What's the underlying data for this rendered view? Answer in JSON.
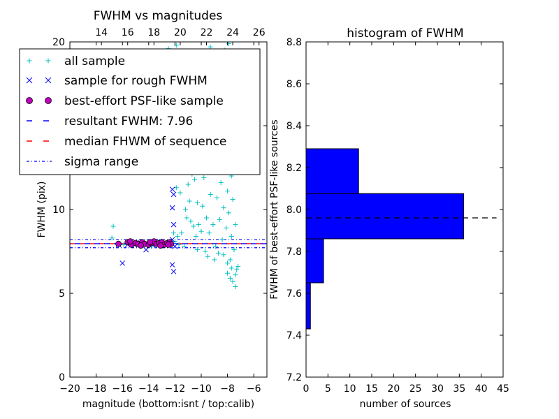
{
  "chart_data": [
    {
      "type": "scatter",
      "title": "FWHM vs magnitudes",
      "xlabel": "magnitude (bottom:isnt / top:calib)",
      "ylabel": "FWHM (pix)",
      "xlim": [
        -20,
        -5
      ],
      "ylim": [
        0,
        20
      ],
      "x_ticks": [
        "−20",
        "−18",
        "−16",
        "−14",
        "−12",
        "−10",
        "−8",
        "−6"
      ],
      "y_ticks": [
        "0",
        "5",
        "10",
        "20"
      ],
      "top_x_ticks": [
        {
          "label": "14",
          "value": -17.6
        },
        {
          "label": "16",
          "value": -15.6
        },
        {
          "label": "18",
          "value": -13.6
        },
        {
          "label": "20",
          "value": -11.6
        },
        {
          "label": "22",
          "value": -9.6
        },
        {
          "label": "24",
          "value": -7.6
        },
        {
          "label": "26",
          "value": -5.6
        }
      ],
      "legend": {
        "position": "top-left",
        "entries": [
          "all sample",
          "sample for rough FWHM",
          "best-effort PSF-like sample",
          "resultant FWHM: 7.96",
          "median FHWM of sequence",
          "sigma range"
        ]
      },
      "colors": {
        "all_sample": "#00bfbf",
        "rough_sample": "#0000ff",
        "psf_fill": "#bf00bf",
        "resultant_line": "#0000ff",
        "median_line": "#ff0000",
        "sigma_line": "#0000ff"
      },
      "series": [
        {
          "name": "all sample",
          "points": [
            [
              -16.7,
              9.0
            ],
            [
              -16.8,
              8.3
            ],
            [
              -16.3,
              7.9
            ],
            [
              -15.9,
              7.9
            ],
            [
              -15.5,
              8.0
            ],
            [
              -15.2,
              7.9
            ],
            [
              -14.9,
              8.0
            ],
            [
              -14.6,
              8.1
            ],
            [
              -14.3,
              7.9
            ],
            [
              -14.1,
              8.0
            ],
            [
              -13.8,
              7.8
            ],
            [
              -13.5,
              8.0
            ],
            [
              -13.2,
              7.9
            ],
            [
              -12.9,
              8.0
            ],
            [
              -12.6,
              7.9
            ],
            [
              -12.3,
              8.0
            ],
            [
              -12.0,
              8.1
            ],
            [
              -11.7,
              7.9
            ],
            [
              -11.5,
              8.6
            ],
            [
              -11.3,
              7.8
            ],
            [
              -11.1,
              9.5
            ],
            [
              -11.0,
              11.5
            ],
            [
              -10.9,
              10.5
            ],
            [
              -10.7,
              12.1
            ],
            [
              -10.6,
              9.0
            ],
            [
              -10.5,
              11.8
            ],
            [
              -10.4,
              8.4
            ],
            [
              -10.3,
              10.4
            ],
            [
              -10.2,
              9.1
            ],
            [
              -10.1,
              12.8
            ],
            [
              -10.0,
              8.7
            ],
            [
              -9.9,
              13.5
            ],
            [
              -9.9,
              10.2
            ],
            [
              -9.8,
              11.9
            ],
            [
              -9.7,
              7.5
            ],
            [
              -9.6,
              14.0
            ],
            [
              -9.6,
              9.5
            ],
            [
              -9.5,
              12.7
            ],
            [
              -9.4,
              15.0
            ],
            [
              -9.4,
              8.6
            ],
            [
              -9.3,
              10.9
            ],
            [
              -9.2,
              13.8
            ],
            [
              -9.1,
              16.5
            ],
            [
              -9.1,
              9.1
            ],
            [
              -9.0,
              12.3
            ],
            [
              -8.9,
              14.6
            ],
            [
              -8.9,
              7.8
            ],
            [
              -8.8,
              17.8
            ],
            [
              -8.8,
              10.7
            ],
            [
              -8.7,
              13.1
            ],
            [
              -8.6,
              15.7
            ],
            [
              -8.6,
              9.4
            ],
            [
              -8.5,
              18.9
            ],
            [
              -8.5,
              11.6
            ],
            [
              -8.4,
              14.2
            ],
            [
              -8.4,
              8.2
            ],
            [
              -8.3,
              16.9
            ],
            [
              -8.3,
              10.1
            ],
            [
              -8.2,
              12.8
            ],
            [
              -8.2,
              19.5
            ],
            [
              -8.1,
              15.3
            ],
            [
              -8.1,
              8.9
            ],
            [
              -8.0,
              13.6
            ],
            [
              -8.0,
              11.1
            ],
            [
              -7.9,
              17.4
            ],
            [
              -7.9,
              9.8
            ],
            [
              -7.8,
              14.9
            ],
            [
              -7.8,
              7.0
            ],
            [
              -7.7,
              12.0
            ],
            [
              -7.7,
              8.4
            ],
            [
              -7.6,
              16.2
            ],
            [
              -7.6,
              10.6
            ],
            [
              -7.5,
              13.3
            ],
            [
              -7.5,
              7.6
            ],
            [
              -7.4,
              9.1
            ],
            [
              -8.3,
              7.3
            ],
            [
              -8.0,
              6.8
            ],
            [
              -7.7,
              6.5
            ],
            [
              -7.4,
              6.1
            ],
            [
              -7.2,
              6.6
            ],
            [
              -7.8,
              5.9
            ],
            [
              -7.6,
              5.7
            ],
            [
              -7.4,
              5.4
            ],
            [
              -8.0,
              6.2
            ],
            [
              -7.3,
              6.4
            ],
            [
              -9.5,
              7.2
            ],
            [
              -9.0,
              7.0
            ],
            [
              -8.7,
              7.4
            ],
            [
              -10.3,
              7.6
            ],
            [
              -11.8,
              8.4
            ],
            [
              -12.1,
              8.6
            ],
            [
              -11.9,
              11.3
            ],
            [
              -11.6,
              11.0
            ],
            [
              -11.2,
              10.0
            ],
            [
              -10.8,
              9.3
            ],
            [
              -12.5,
              19.6
            ],
            [
              -11.9,
              19.8
            ],
            [
              -9.3,
              19.7
            ],
            [
              -7.9,
              19.9
            ],
            [
              -10.0,
              19.2
            ],
            [
              -9.7,
              18.4
            ],
            [
              -8.9,
              18.7
            ],
            [
              -9.2,
              17.6
            ],
            [
              -8.3,
              18.3
            ],
            [
              -10.2,
              17.0
            ]
          ]
        },
        {
          "name": "sample for rough FWHM",
          "points": [
            [
              -16.0,
              6.8
            ],
            [
              -16.3,
              7.9
            ],
            [
              -15.6,
              7.9
            ],
            [
              -15.1,
              7.9
            ],
            [
              -14.6,
              8.0
            ],
            [
              -14.2,
              7.6
            ],
            [
              -13.7,
              7.9
            ],
            [
              -13.2,
              8.1
            ],
            [
              -12.8,
              7.9
            ],
            [
              -12.4,
              8.0
            ],
            [
              -12.2,
              11.2
            ],
            [
              -12.1,
              10.9
            ],
            [
              -12.2,
              10.1
            ],
            [
              -12.1,
              9.1
            ],
            [
              -12.2,
              6.7
            ],
            [
              -12.1,
              6.3
            ],
            [
              -12.2,
              8.2
            ],
            [
              -12.0,
              7.8
            ]
          ]
        },
        {
          "name": "best-effort PSF-like sample",
          "points": [
            [
              -16.3,
              7.95
            ],
            [
              -15.6,
              8.05
            ],
            [
              -15.3,
              7.9
            ],
            [
              -15.0,
              8.0
            ],
            [
              -14.8,
              7.95
            ],
            [
              -14.5,
              8.05
            ],
            [
              -14.3,
              7.95
            ],
            [
              -14.0,
              7.9
            ],
            [
              -13.8,
              8.0
            ],
            [
              -13.6,
              8.1
            ],
            [
              -13.4,
              7.95
            ],
            [
              -13.2,
              8.0
            ],
            [
              -13.0,
              8.05
            ],
            [
              -12.8,
              7.9
            ],
            [
              -12.6,
              8.0
            ],
            [
              -12.4,
              8.05
            ],
            [
              -12.3,
              7.95
            ],
            [
              -15.4,
              8.1
            ],
            [
              -14.6,
              7.85
            ],
            [
              -13.9,
              8.05
            ],
            [
              -13.1,
              7.85
            ],
            [
              -12.5,
              7.9
            ]
          ]
        }
      ],
      "lines": {
        "resultant_fwhm": 7.96,
        "median_fwhm": 7.96,
        "sigma_low": 7.72,
        "sigma_high": 8.2
      }
    },
    {
      "type": "bar",
      "orientation": "horizontal",
      "title": "histogram of FWHM",
      "xlabel": "number of sources",
      "ylabel": "FWHM of best-effort PSF-like sources",
      "xlim": [
        0,
        45
      ],
      "ylim": [
        7.2,
        8.8
      ],
      "x_ticks": [
        "0",
        "5",
        "10",
        "15",
        "20",
        "25",
        "30",
        "35",
        "40",
        "45"
      ],
      "y_ticks": [
        "7.2",
        "7.4",
        "7.6",
        "7.8",
        "8.0",
        "8.2",
        "8.4",
        "8.6",
        "8.8"
      ],
      "bar_color": "#0000ff",
      "bins": [
        {
          "low": 7.43,
          "high": 7.65,
          "count": 1
        },
        {
          "low": 7.65,
          "high": 7.86,
          "count": 4
        },
        {
          "low": 7.86,
          "high": 8.076,
          "count": 36
        },
        {
          "low": 8.076,
          "high": 8.29,
          "count": 12
        }
      ],
      "reference_line": 7.96
    }
  ]
}
